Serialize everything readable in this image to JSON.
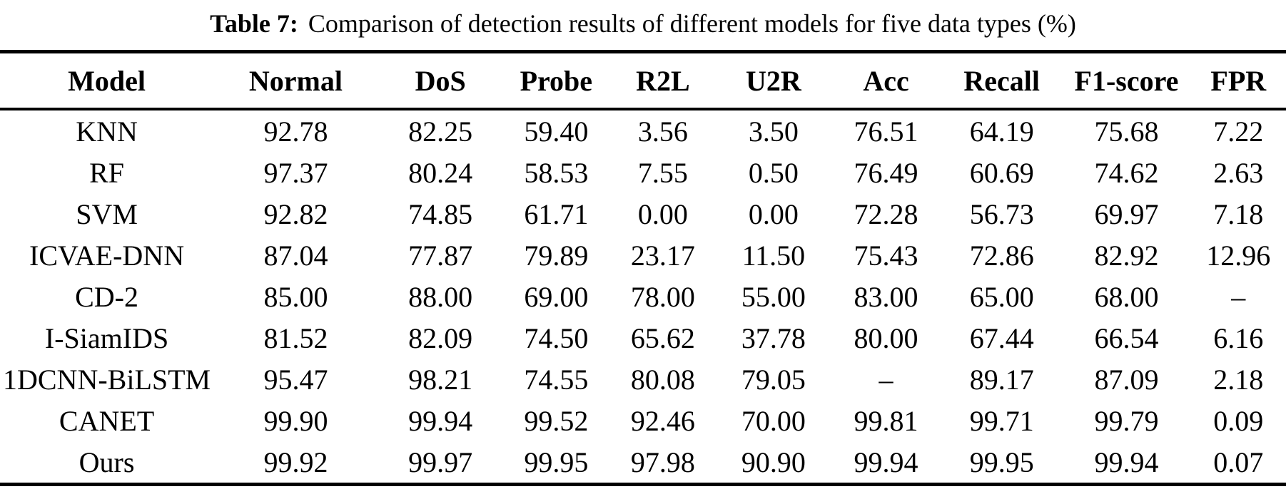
{
  "caption": {
    "label": "Table 7:",
    "text": "Comparison of detection results of different models for five data types (%)"
  },
  "table": {
    "columns": [
      "Model",
      "Normal",
      "DoS",
      "Probe",
      "R2L",
      "U2R",
      "Acc",
      "Recall",
      "F1-score",
      "FPR"
    ],
    "rows": [
      [
        "KNN",
        "92.78",
        "82.25",
        "59.40",
        "3.56",
        "3.50",
        "76.51",
        "64.19",
        "75.68",
        "7.22"
      ],
      [
        "RF",
        "97.37",
        "80.24",
        "58.53",
        "7.55",
        "0.50",
        "76.49",
        "60.69",
        "74.62",
        "2.63"
      ],
      [
        "SVM",
        "92.82",
        "74.85",
        "61.71",
        "0.00",
        "0.00",
        "72.28",
        "56.73",
        "69.97",
        "7.18"
      ],
      [
        "ICVAE-DNN",
        "87.04",
        "77.87",
        "79.89",
        "23.17",
        "11.50",
        "75.43",
        "72.86",
        "82.92",
        "12.96"
      ],
      [
        "CD-2",
        "85.00",
        "88.00",
        "69.00",
        "78.00",
        "55.00",
        "83.00",
        "65.00",
        "68.00",
        "–"
      ],
      [
        "I-SiamIDS",
        "81.52",
        "82.09",
        "74.50",
        "65.62",
        "37.78",
        "80.00",
        "67.44",
        "66.54",
        "6.16"
      ],
      [
        "1DCNN-BiLSTM",
        "95.47",
        "98.21",
        "74.55",
        "80.08",
        "79.05",
        "–",
        "89.17",
        "87.09",
        "2.18"
      ],
      [
        "CANET",
        "99.90",
        "99.94",
        "99.52",
        "92.46",
        "70.00",
        "99.81",
        "99.71",
        "99.79",
        "0.09"
      ],
      [
        "Ours",
        "99.92",
        "99.97",
        "99.95",
        "97.98",
        "90.90",
        "99.94",
        "99.95",
        "99.94",
        "0.07"
      ]
    ]
  },
  "colors": {
    "text": "#000000",
    "background": "#ffffff",
    "rule": "#000000"
  }
}
